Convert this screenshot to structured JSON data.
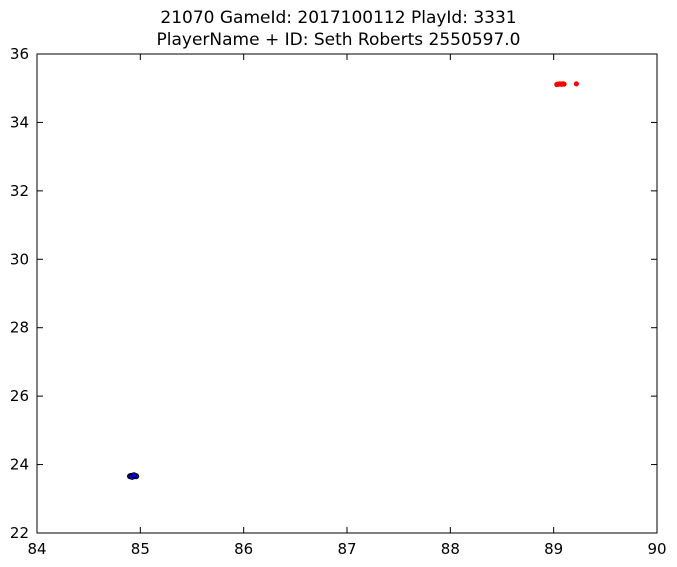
{
  "chart_data": {
    "type": "scatter",
    "title_lines": [
      "21070 GameId: 2017100112 PlayId: 3331",
      "PlayerName + ID: Seth Roberts 2550597.0"
    ],
    "xlabel": "",
    "ylabel": "",
    "xlim": [
      84,
      90
    ],
    "ylim": [
      22,
      36
    ],
    "x_ticks": [
      "84",
      "85",
      "86",
      "87",
      "88",
      "89",
      "90"
    ],
    "y_ticks": [
      "22",
      "24",
      "26",
      "28",
      "30",
      "32",
      "34",
      "36"
    ],
    "grid": false,
    "series": [
      {
        "color": "#ff0000",
        "points": [
          [
            89.03,
            35.11
          ],
          [
            89.04,
            35.12
          ],
          [
            89.05,
            35.12
          ],
          [
            89.06,
            35.13
          ],
          [
            89.07,
            35.12
          ],
          [
            89.08,
            35.12
          ],
          [
            89.09,
            35.13
          ],
          [
            89.1,
            35.12
          ],
          [
            89.22,
            35.13
          ]
        ]
      },
      {
        "color": "#0000ff",
        "points": [
          [
            84.9,
            23.66
          ],
          [
            84.91,
            23.67
          ],
          [
            84.92,
            23.66
          ],
          [
            84.93,
            23.68
          ],
          [
            84.94,
            23.66
          ],
          [
            84.95,
            23.67
          ],
          [
            84.96,
            23.66
          ],
          [
            84.92,
            23.64
          ],
          [
            84.94,
            23.69
          ]
        ]
      }
    ]
  }
}
